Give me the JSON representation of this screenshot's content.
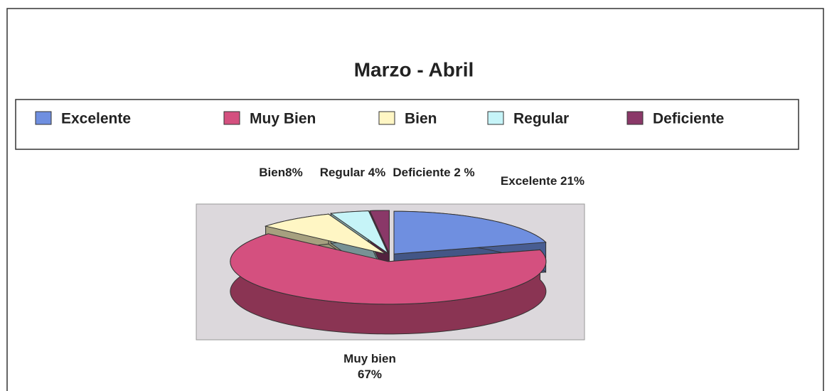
{
  "chart_data": {
    "type": "pie3d",
    "title": "Marzo - Abril",
    "categories": [
      "Excelente",
      "Muy Bien",
      "Bien",
      "Regular",
      "Deficiente"
    ],
    "values": [
      21,
      67,
      8,
      4,
      2
    ],
    "value_labels": [
      "Excelente 21%",
      "Muy bien 67%",
      "Bien8%",
      "Regular 4%",
      "Deficiente 2 %"
    ],
    "colors": [
      "#6f8fe0",
      "#d4507f",
      "#fff6c4",
      "#c6f4f8",
      "#8a3868"
    ],
    "legend": "top"
  }
}
